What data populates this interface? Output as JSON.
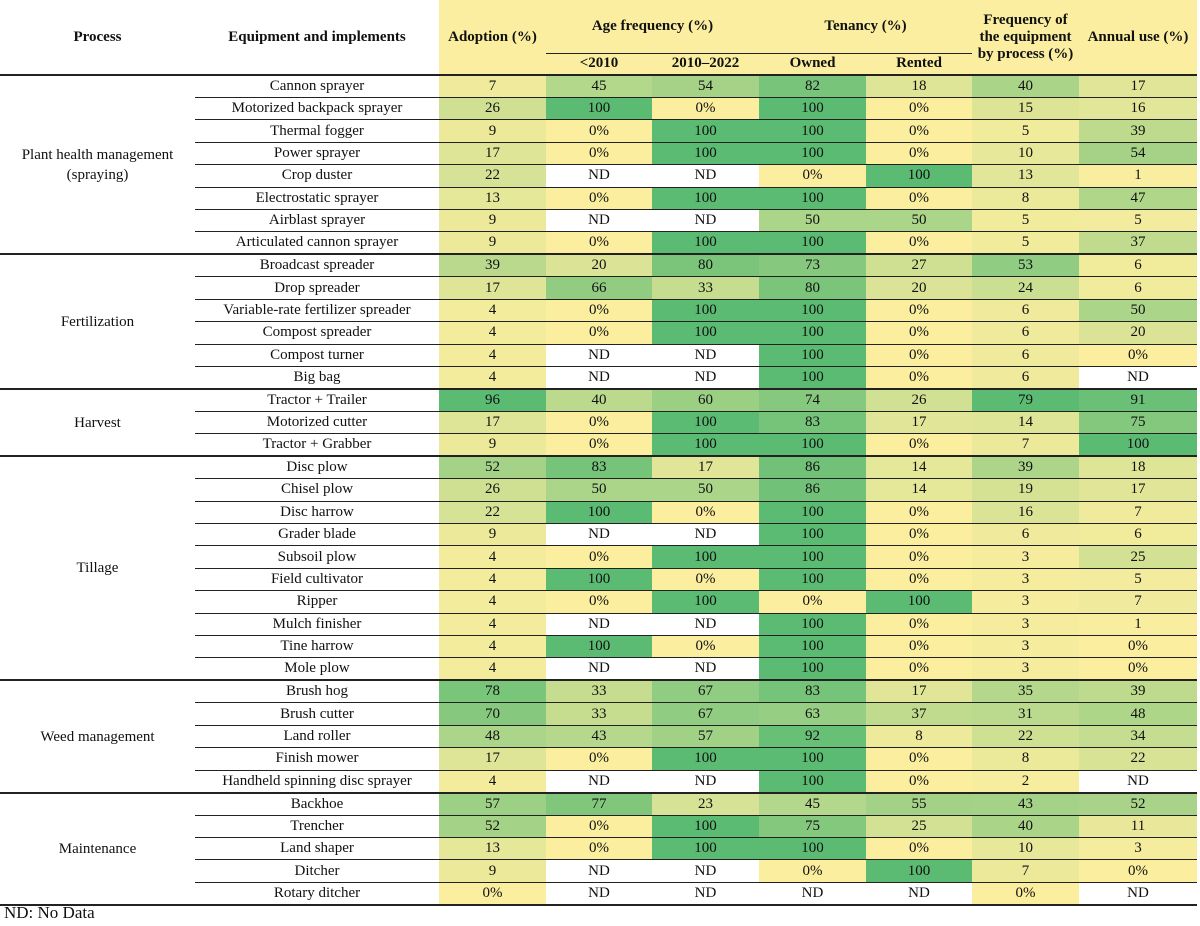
{
  "colors": {
    "header_highlight": "#fbeea0",
    "scale_low": "#fbee9f",
    "scale_high": "#5bbb72",
    "no_data": "#ffffff"
  },
  "headers": {
    "process": "Process",
    "equipment": "Equipment and implements",
    "adoption": "Adoption (%)",
    "age_frequency": "Age frequency (%)",
    "age_before": "<2010",
    "age_after": "2010–2022",
    "tenancy": "Tenancy (%)",
    "owned": "Owned",
    "rented": "Rented",
    "freq_process": "Frequency of the equipment by process (%)",
    "annual_use": "Annual use (%)"
  },
  "groups": [
    {
      "process": "Plant health management (spraying)",
      "rows": [
        [
          "Cannon sprayer",
          "7",
          "45",
          "54",
          "82",
          "18",
          "40",
          "17"
        ],
        [
          "Motorized backpack sprayer",
          "26",
          "100",
          "0%",
          "100",
          "0%",
          "15",
          "16"
        ],
        [
          "Thermal fogger",
          "9",
          "0%",
          "100",
          "100",
          "0%",
          "5",
          "39"
        ],
        [
          "Power sprayer",
          "17",
          "0%",
          "100",
          "100",
          "0%",
          "10",
          "54"
        ],
        [
          "Crop duster",
          "22",
          "ND",
          "ND",
          "0%",
          "100",
          "13",
          "1"
        ],
        [
          "Electrostatic sprayer",
          "13",
          "0%",
          "100",
          "100",
          "0%",
          "8",
          "47"
        ],
        [
          "Airblast sprayer",
          "9",
          "ND",
          "ND",
          "50",
          "50",
          "5",
          "5"
        ],
        [
          "Articulated cannon sprayer",
          "9",
          "0%",
          "100",
          "100",
          "0%",
          "5",
          "37"
        ]
      ]
    },
    {
      "process": "Fertilization",
      "rows": [
        [
          "Broadcast spreader",
          "39",
          "20",
          "80",
          "73",
          "27",
          "53",
          "6"
        ],
        [
          "Drop spreader",
          "17",
          "66",
          "33",
          "80",
          "20",
          "24",
          "6"
        ],
        [
          "Variable-rate fertilizer spreader",
          "4",
          "0%",
          "100",
          "100",
          "0%",
          "6",
          "50"
        ],
        [
          "Compost spreader",
          "4",
          "0%",
          "100",
          "100",
          "0%",
          "6",
          "20"
        ],
        [
          "Compost turner",
          "4",
          "ND",
          "ND",
          "100",
          "0%",
          "6",
          "0%"
        ],
        [
          "Big bag",
          "4",
          "ND",
          "ND",
          "100",
          "0%",
          "6",
          "ND"
        ]
      ]
    },
    {
      "process": "Harvest",
      "rows": [
        [
          "Tractor + Trailer",
          "96",
          "40",
          "60",
          "74",
          "26",
          "79",
          "91"
        ],
        [
          "Motorized cutter",
          "17",
          "0%",
          "100",
          "83",
          "17",
          "14",
          "75"
        ],
        [
          "Tractor + Grabber",
          "9",
          "0%",
          "100",
          "100",
          "0%",
          "7",
          "100"
        ]
      ]
    },
    {
      "process": "Tillage",
      "rows": [
        [
          "Disc plow",
          "52",
          "83",
          "17",
          "86",
          "14",
          "39",
          "18"
        ],
        [
          "Chisel plow",
          "26",
          "50",
          "50",
          "86",
          "14",
          "19",
          "17"
        ],
        [
          "Disc harrow",
          "22",
          "100",
          "0%",
          "100",
          "0%",
          "16",
          "7"
        ],
        [
          "Grader blade",
          "9",
          "ND",
          "ND",
          "100",
          "0%",
          "6",
          "6"
        ],
        [
          "Subsoil plow",
          "4",
          "0%",
          "100",
          "100",
          "0%",
          "3",
          "25"
        ],
        [
          "Field cultivator",
          "4",
          "100",
          "0%",
          "100",
          "0%",
          "3",
          "5"
        ],
        [
          "Ripper",
          "4",
          "0%",
          "100",
          "0%",
          "100",
          "3",
          "7"
        ],
        [
          "Mulch finisher",
          "4",
          "ND",
          "ND",
          "100",
          "0%",
          "3",
          "1"
        ],
        [
          "Tine harrow",
          "4",
          "100",
          "0%",
          "100",
          "0%",
          "3",
          "0%"
        ],
        [
          "Mole plow",
          "4",
          "ND",
          "ND",
          "100",
          "0%",
          "3",
          "0%"
        ]
      ]
    },
    {
      "process": "Weed management",
      "rows": [
        [
          "Brush hog",
          "78",
          "33",
          "67",
          "83",
          "17",
          "35",
          "39"
        ],
        [
          "Brush cutter",
          "70",
          "33",
          "67",
          "63",
          "37",
          "31",
          "48"
        ],
        [
          "Land roller",
          "48",
          "43",
          "57",
          "92",
          "8",
          "22",
          "34"
        ],
        [
          "Finish mower",
          "17",
          "0%",
          "100",
          "100",
          "0%",
          "8",
          "22"
        ],
        [
          "Handheld spinning disc sprayer",
          "4",
          "ND",
          "ND",
          "100",
          "0%",
          "2",
          "ND"
        ]
      ]
    },
    {
      "process": "Maintenance",
      "rows": [
        [
          "Backhoe",
          "57",
          "77",
          "23",
          "45",
          "55",
          "43",
          "52"
        ],
        [
          "Trencher",
          "52",
          "0%",
          "100",
          "75",
          "25",
          "40",
          "11"
        ],
        [
          "Land shaper",
          "13",
          "0%",
          "100",
          "100",
          "0%",
          "10",
          "3"
        ],
        [
          "Ditcher",
          "9",
          "ND",
          "ND",
          "0%",
          "100",
          "7",
          "0%"
        ],
        [
          "Rotary ditcher",
          "0%",
          "ND",
          "ND",
          "ND",
          "ND",
          "0%",
          "ND"
        ]
      ]
    }
  ],
  "footnote": "ND: No Data"
}
